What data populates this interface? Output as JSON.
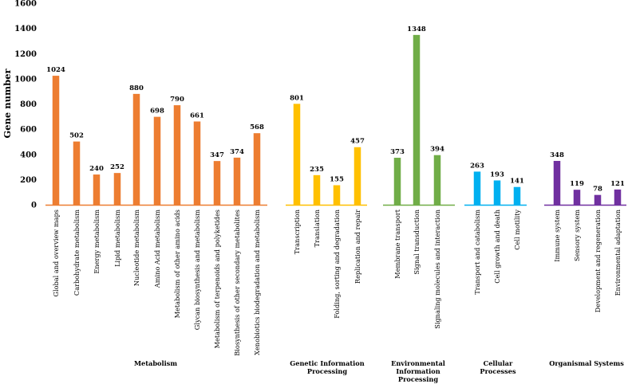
{
  "chart_data": {
    "type": "bar",
    "ylabel": "Gene number",
    "ylim": [
      0,
      1600
    ],
    "yticks": [
      0,
      200,
      400,
      600,
      800,
      1000,
      1200,
      1400,
      1600
    ],
    "grid": false,
    "groups": [
      {
        "name": "Metabolism",
        "name_lines": [
          "Metabolism"
        ],
        "color": "#ED7D31",
        "categories": [
          "Global and overview maps",
          "Carbohydrate metabolism",
          "Energy metabolism",
          "Lipid metabolism",
          "Nucleotide metabolism",
          "Amino Acid metabolism",
          "Metabolism of other amino acids",
          "Glycan biosynthesis and metabolism",
          "Metabolism of terpenoids and polyketides",
          "Biosynthesis of other secondary metabolites",
          "Xenobiotics biodegradation and metabolism"
        ],
        "values": [
          1024,
          502,
          240,
          252,
          880,
          698,
          790,
          661,
          347,
          374,
          568
        ]
      },
      {
        "name": "Genetic Information Processing",
        "name_lines": [
          "Genetic Information",
          "Processing"
        ],
        "color": "#FFC000",
        "categories": [
          "Transcription",
          "Translation",
          "Folding, sorting and degradation",
          "Replication and repair"
        ],
        "values": [
          801,
          235,
          155,
          457
        ]
      },
      {
        "name": "Environmental Information Processing",
        "name_lines": [
          "Environmental",
          "Information",
          "Processing"
        ],
        "color": "#70AD47",
        "categories": [
          "Membrane transport",
          "Signal transduction",
          "Signaling molecules and interaction"
        ],
        "values": [
          373,
          1348,
          394
        ]
      },
      {
        "name": "Cellular Processes",
        "name_lines": [
          "Cellular",
          "Processes"
        ],
        "color": "#00B0F0",
        "categories": [
          "Transport and catabolism",
          "Cell growth and death",
          "Cell motility"
        ],
        "values": [
          263,
          193,
          141
        ]
      },
      {
        "name": "Organismal Systems",
        "name_lines": [
          "Organismal Systems"
        ],
        "color": "#7030A0",
        "categories": [
          "Immune system",
          "Sensory system",
          "Development and regeneration",
          "Environmental adaptation"
        ],
        "values": [
          348,
          119,
          78,
          121
        ]
      }
    ]
  }
}
